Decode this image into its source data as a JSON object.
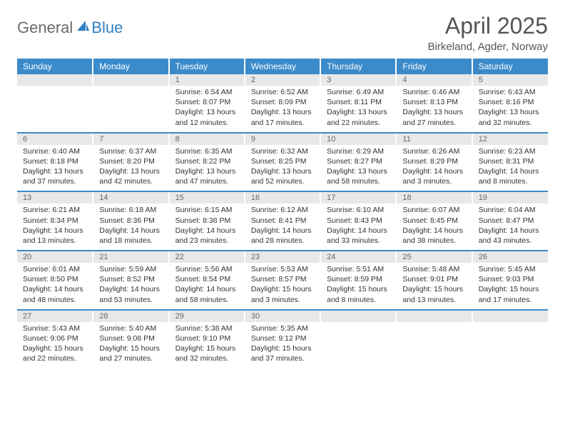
{
  "brand": {
    "part1": "General",
    "part2": "Blue"
  },
  "title": "April 2025",
  "location": "Birkeland, Agder, Norway",
  "colors": {
    "header_bg": "#3b8bca",
    "header_text": "#ffffff",
    "daynum_bg": "#e8e8e8",
    "row_divider": "#3b8bca",
    "body_text": "#333333",
    "title_text": "#555555"
  },
  "weekdays": [
    "Sunday",
    "Monday",
    "Tuesday",
    "Wednesday",
    "Thursday",
    "Friday",
    "Saturday"
  ],
  "weeks": [
    [
      {
        "n": "",
        "sr": "",
        "ss": "",
        "dl": ""
      },
      {
        "n": "",
        "sr": "",
        "ss": "",
        "dl": ""
      },
      {
        "n": "1",
        "sr": "Sunrise: 6:54 AM",
        "ss": "Sunset: 8:07 PM",
        "dl": "Daylight: 13 hours and 12 minutes."
      },
      {
        "n": "2",
        "sr": "Sunrise: 6:52 AM",
        "ss": "Sunset: 8:09 PM",
        "dl": "Daylight: 13 hours and 17 minutes."
      },
      {
        "n": "3",
        "sr": "Sunrise: 6:49 AM",
        "ss": "Sunset: 8:11 PM",
        "dl": "Daylight: 13 hours and 22 minutes."
      },
      {
        "n": "4",
        "sr": "Sunrise: 6:46 AM",
        "ss": "Sunset: 8:13 PM",
        "dl": "Daylight: 13 hours and 27 minutes."
      },
      {
        "n": "5",
        "sr": "Sunrise: 6:43 AM",
        "ss": "Sunset: 8:16 PM",
        "dl": "Daylight: 13 hours and 32 minutes."
      }
    ],
    [
      {
        "n": "6",
        "sr": "Sunrise: 6:40 AM",
        "ss": "Sunset: 8:18 PM",
        "dl": "Daylight: 13 hours and 37 minutes."
      },
      {
        "n": "7",
        "sr": "Sunrise: 6:37 AM",
        "ss": "Sunset: 8:20 PM",
        "dl": "Daylight: 13 hours and 42 minutes."
      },
      {
        "n": "8",
        "sr": "Sunrise: 6:35 AM",
        "ss": "Sunset: 8:22 PM",
        "dl": "Daylight: 13 hours and 47 minutes."
      },
      {
        "n": "9",
        "sr": "Sunrise: 6:32 AM",
        "ss": "Sunset: 8:25 PM",
        "dl": "Daylight: 13 hours and 52 minutes."
      },
      {
        "n": "10",
        "sr": "Sunrise: 6:29 AM",
        "ss": "Sunset: 8:27 PM",
        "dl": "Daylight: 13 hours and 58 minutes."
      },
      {
        "n": "11",
        "sr": "Sunrise: 6:26 AM",
        "ss": "Sunset: 8:29 PM",
        "dl": "Daylight: 14 hours and 3 minutes."
      },
      {
        "n": "12",
        "sr": "Sunrise: 6:23 AM",
        "ss": "Sunset: 8:31 PM",
        "dl": "Daylight: 14 hours and 8 minutes."
      }
    ],
    [
      {
        "n": "13",
        "sr": "Sunrise: 6:21 AM",
        "ss": "Sunset: 8:34 PM",
        "dl": "Daylight: 14 hours and 13 minutes."
      },
      {
        "n": "14",
        "sr": "Sunrise: 6:18 AM",
        "ss": "Sunset: 8:36 PM",
        "dl": "Daylight: 14 hours and 18 minutes."
      },
      {
        "n": "15",
        "sr": "Sunrise: 6:15 AM",
        "ss": "Sunset: 8:38 PM",
        "dl": "Daylight: 14 hours and 23 minutes."
      },
      {
        "n": "16",
        "sr": "Sunrise: 6:12 AM",
        "ss": "Sunset: 8:41 PM",
        "dl": "Daylight: 14 hours and 28 minutes."
      },
      {
        "n": "17",
        "sr": "Sunrise: 6:10 AM",
        "ss": "Sunset: 8:43 PM",
        "dl": "Daylight: 14 hours and 33 minutes."
      },
      {
        "n": "18",
        "sr": "Sunrise: 6:07 AM",
        "ss": "Sunset: 8:45 PM",
        "dl": "Daylight: 14 hours and 38 minutes."
      },
      {
        "n": "19",
        "sr": "Sunrise: 6:04 AM",
        "ss": "Sunset: 8:47 PM",
        "dl": "Daylight: 14 hours and 43 minutes."
      }
    ],
    [
      {
        "n": "20",
        "sr": "Sunrise: 6:01 AM",
        "ss": "Sunset: 8:50 PM",
        "dl": "Daylight: 14 hours and 48 minutes."
      },
      {
        "n": "21",
        "sr": "Sunrise: 5:59 AM",
        "ss": "Sunset: 8:52 PM",
        "dl": "Daylight: 14 hours and 53 minutes."
      },
      {
        "n": "22",
        "sr": "Sunrise: 5:56 AM",
        "ss": "Sunset: 8:54 PM",
        "dl": "Daylight: 14 hours and 58 minutes."
      },
      {
        "n": "23",
        "sr": "Sunrise: 5:53 AM",
        "ss": "Sunset: 8:57 PM",
        "dl": "Daylight: 15 hours and 3 minutes."
      },
      {
        "n": "24",
        "sr": "Sunrise: 5:51 AM",
        "ss": "Sunset: 8:59 PM",
        "dl": "Daylight: 15 hours and 8 minutes."
      },
      {
        "n": "25",
        "sr": "Sunrise: 5:48 AM",
        "ss": "Sunset: 9:01 PM",
        "dl": "Daylight: 15 hours and 13 minutes."
      },
      {
        "n": "26",
        "sr": "Sunrise: 5:45 AM",
        "ss": "Sunset: 9:03 PM",
        "dl": "Daylight: 15 hours and 17 minutes."
      }
    ],
    [
      {
        "n": "27",
        "sr": "Sunrise: 5:43 AM",
        "ss": "Sunset: 9:06 PM",
        "dl": "Daylight: 15 hours and 22 minutes."
      },
      {
        "n": "28",
        "sr": "Sunrise: 5:40 AM",
        "ss": "Sunset: 9:08 PM",
        "dl": "Daylight: 15 hours and 27 minutes."
      },
      {
        "n": "29",
        "sr": "Sunrise: 5:38 AM",
        "ss": "Sunset: 9:10 PM",
        "dl": "Daylight: 15 hours and 32 minutes."
      },
      {
        "n": "30",
        "sr": "Sunrise: 5:35 AM",
        "ss": "Sunset: 9:12 PM",
        "dl": "Daylight: 15 hours and 37 minutes."
      },
      {
        "n": "",
        "sr": "",
        "ss": "",
        "dl": ""
      },
      {
        "n": "",
        "sr": "",
        "ss": "",
        "dl": ""
      },
      {
        "n": "",
        "sr": "",
        "ss": "",
        "dl": ""
      }
    ]
  ]
}
